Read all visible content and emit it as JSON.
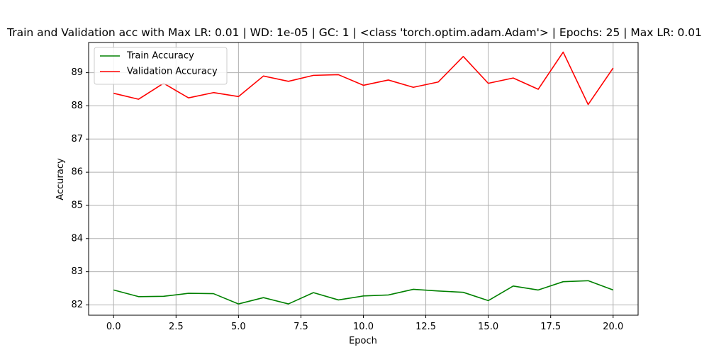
{
  "chart_data": {
    "type": "line",
    "title": "Train and Validation acc with Max LR: 0.01 | WD: 1e-05 | GC: 1 | <class 'torch.optim.adam.Adam'> | Epochs: 25 | Max LR: 0.01",
    "xlabel": "Epoch",
    "ylabel": "Accuracy",
    "xlim": [
      -1.0,
      21.0
    ],
    "ylim": [
      81.69,
      89.91
    ],
    "xticks": [
      0.0,
      2.5,
      5.0,
      7.5,
      10.0,
      12.5,
      15.0,
      17.5,
      20.0
    ],
    "xtick_labels": [
      "0.0",
      "2.5",
      "5.0",
      "7.5",
      "10.0",
      "12.5",
      "15.0",
      "17.5",
      "20.0"
    ],
    "yticks": [
      82,
      83,
      84,
      85,
      86,
      87,
      88,
      89
    ],
    "ytick_labels": [
      "82",
      "83",
      "84",
      "85",
      "86",
      "87",
      "88",
      "89"
    ],
    "grid": true,
    "legend_position": "top-left",
    "x": [
      0,
      1,
      2,
      3,
      4,
      5,
      6,
      7,
      8,
      9,
      10,
      11,
      12,
      13,
      14,
      15,
      16,
      17,
      18,
      19,
      20
    ],
    "series": [
      {
        "name": "Train Accuracy",
        "color": "#008000",
        "values": [
          82.45,
          82.25,
          82.26,
          82.35,
          82.34,
          82.03,
          82.22,
          82.03,
          82.37,
          82.15,
          82.27,
          82.3,
          82.47,
          82.42,
          82.38,
          82.13,
          82.57,
          82.45,
          82.7,
          82.73,
          82.45
        ]
      },
      {
        "name": "Validation Accuracy",
        "color": "#ff0000",
        "values": [
          88.38,
          88.2,
          88.68,
          88.24,
          88.4,
          88.28,
          88.9,
          88.74,
          88.92,
          88.94,
          88.62,
          88.78,
          88.56,
          88.72,
          89.49,
          88.68,
          88.84,
          88.5,
          89.62,
          88.04,
          89.14
        ]
      }
    ]
  }
}
